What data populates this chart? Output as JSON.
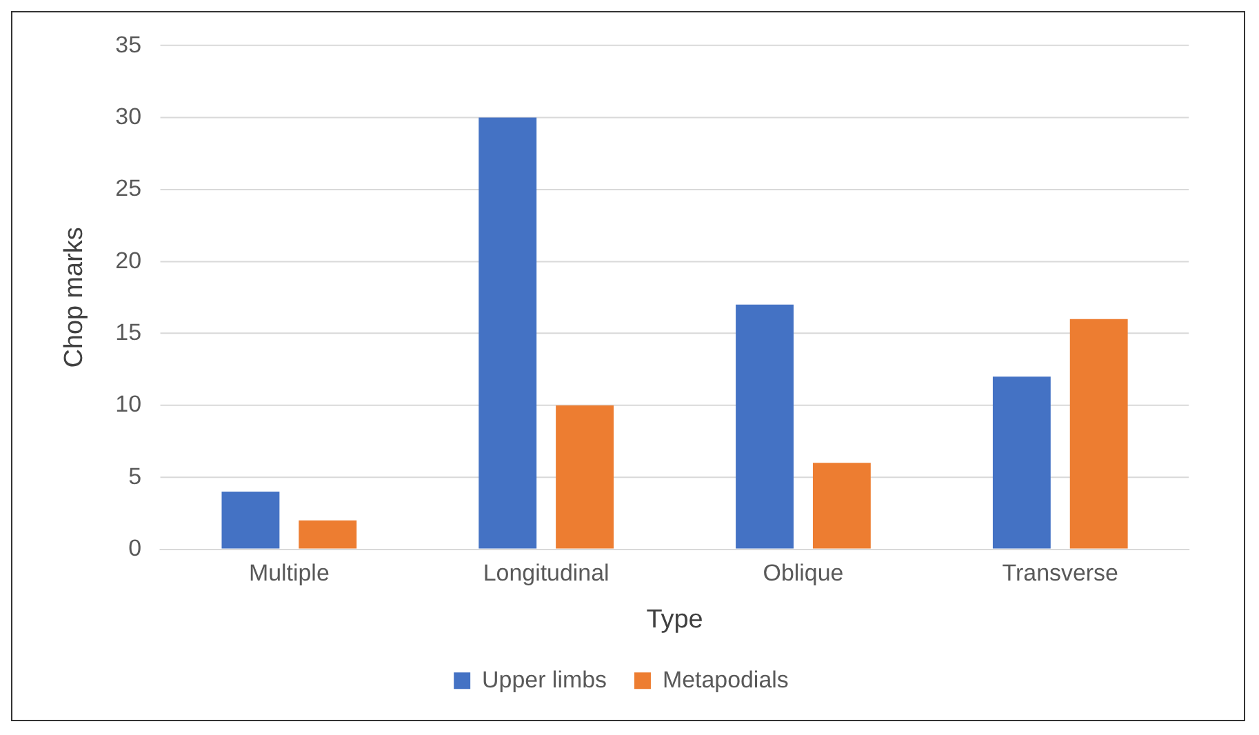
{
  "chart_data": {
    "type": "bar",
    "xlabel": "Type",
    "ylabel": "Chop marks",
    "categories": [
      "Multiple",
      "Longitudinal",
      "Oblique",
      "Transverse"
    ],
    "series": [
      {
        "name": "Upper limbs",
        "color": "#4472c4",
        "values": [
          4,
          30,
          17,
          12
        ]
      },
      {
        "name": "Metapodials",
        "color": "#ed7d31",
        "values": [
          2,
          10,
          6,
          16
        ]
      }
    ],
    "ylim": [
      0,
      35
    ],
    "yticks": [
      0,
      5,
      10,
      15,
      20,
      25,
      30,
      35
    ],
    "grid": "y",
    "legend": "bottom"
  }
}
